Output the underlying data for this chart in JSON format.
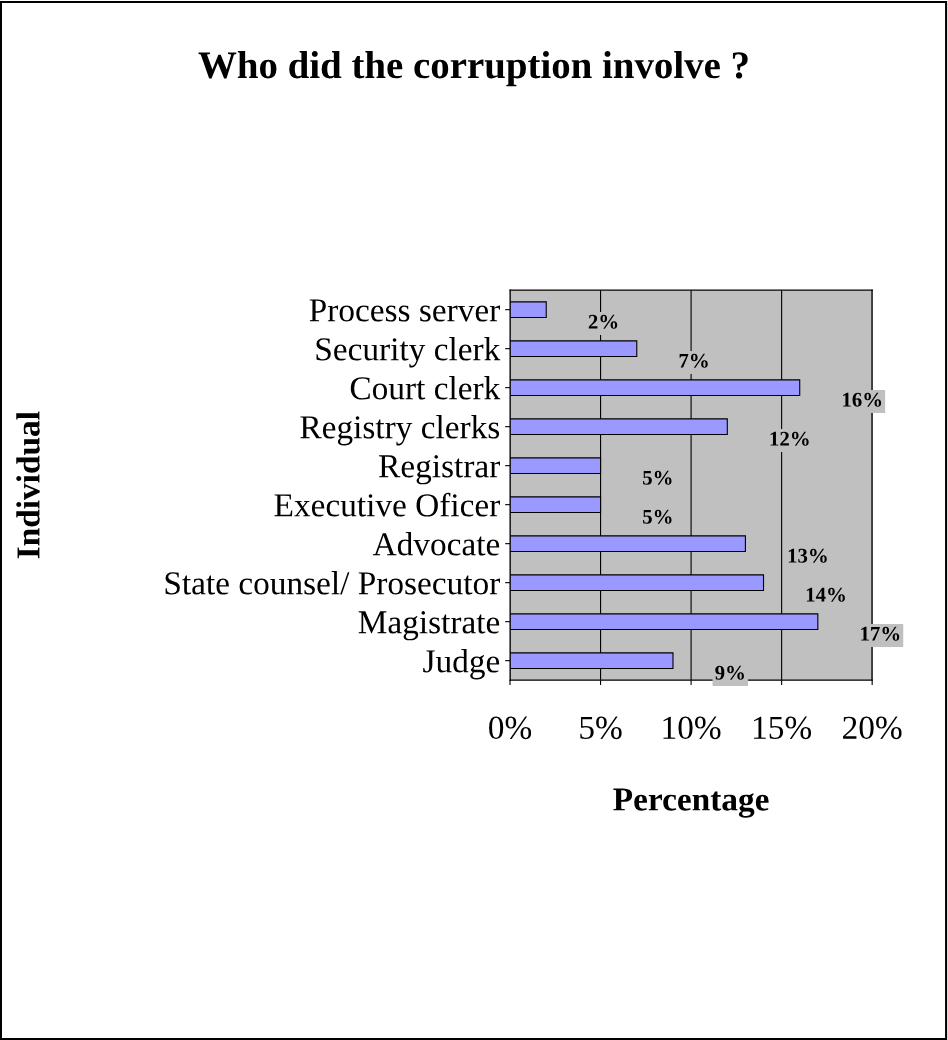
{
  "chart_data": {
    "type": "bar",
    "orientation": "horizontal",
    "title": "Who did the corruption involve ?",
    "xlabel": "Percentage",
    "ylabel": "Individual",
    "categories": [
      "Process server",
      "Security clerk",
      "Court clerk",
      "Registry clerks",
      "Registrar",
      "Executive Oficer",
      "Advocate",
      "State counsel/ Prosecutor",
      "Magistrate",
      "Judge"
    ],
    "values": [
      2,
      7,
      16,
      12,
      5,
      5,
      13,
      14,
      17,
      9
    ],
    "value_labels": [
      "2%",
      "7%",
      "16%",
      "12%",
      "5%",
      "5%",
      "13%",
      "14%",
      "17%",
      "9%"
    ],
    "color": "#9999ff",
    "xlim": [
      0,
      20
    ],
    "xticks": [
      {
        "value": 0,
        "label": "0%"
      },
      {
        "value": 5,
        "label": "5%"
      },
      {
        "value": 10,
        "label": "10%"
      },
      {
        "value": 15,
        "label": "15%"
      },
      {
        "value": 20,
        "label": "20%"
      }
    ],
    "grid": "x"
  }
}
